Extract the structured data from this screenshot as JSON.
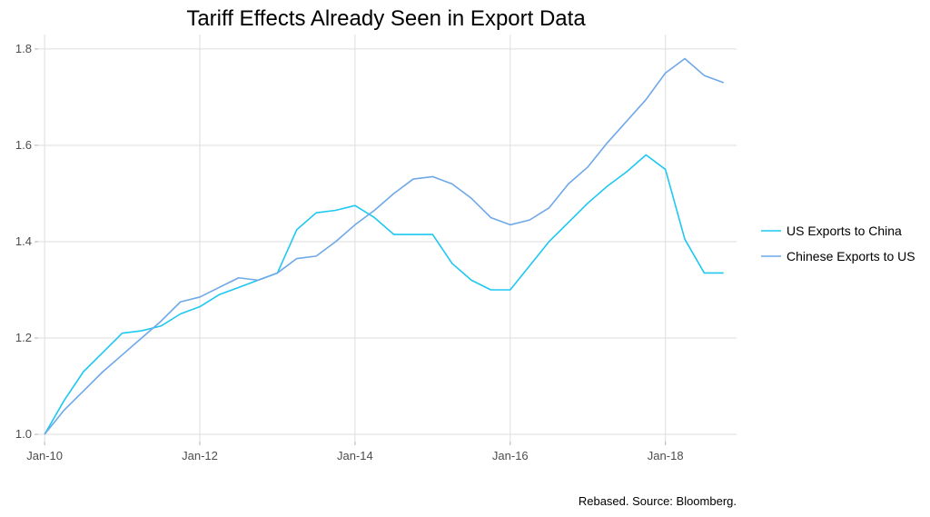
{
  "chart_data": {
    "type": "line",
    "title": "Tariff Effects Already Seen in Export Data",
    "caption": "Rebased. Source: Bloomberg.",
    "xlabel": "",
    "ylabel": "",
    "x_ticks": [
      "Jan-10",
      "Jan-12",
      "Jan-14",
      "Jan-16",
      "Jan-18"
    ],
    "y_ticks": [
      "1.0",
      "1.2",
      "1.4",
      "1.6",
      "1.8"
    ],
    "ylim": [
      0.985,
      1.83
    ],
    "xlim": [
      "2009-12",
      "2018-12"
    ],
    "grid": true,
    "legend_position": "right",
    "series": [
      {
        "name": "US Exports to China",
        "color": "#1ec8f0",
        "x": [
          "2010-01",
          "2010-04",
          "2010-07",
          "2010-10",
          "2011-01",
          "2011-04",
          "2011-07",
          "2011-10",
          "2012-01",
          "2012-04",
          "2012-07",
          "2012-10",
          "2013-01",
          "2013-04",
          "2013-07",
          "2013-10",
          "2014-01",
          "2014-04",
          "2014-07",
          "2014-10",
          "2015-01",
          "2015-04",
          "2015-07",
          "2015-10",
          "2016-01",
          "2016-04",
          "2016-07",
          "2016-10",
          "2017-01",
          "2017-04",
          "2017-07",
          "2017-10",
          "2018-01",
          "2018-04",
          "2018-07",
          "2018-10"
        ],
        "values": [
          1.0,
          1.07,
          1.13,
          1.17,
          1.21,
          1.215,
          1.225,
          1.25,
          1.265,
          1.29,
          1.305,
          1.32,
          1.335,
          1.425,
          1.46,
          1.465,
          1.475,
          1.45,
          1.415,
          1.415,
          1.415,
          1.355,
          1.32,
          1.3,
          1.3,
          1.35,
          1.4,
          1.44,
          1.48,
          1.515,
          1.545,
          1.58,
          1.55,
          1.405,
          1.335,
          1.335
        ]
      },
      {
        "name": "Chinese Exports to US",
        "color": "#6fa8e8",
        "x": [
          "2010-01",
          "2010-04",
          "2010-07",
          "2010-10",
          "2011-01",
          "2011-04",
          "2011-07",
          "2011-10",
          "2012-01",
          "2012-04",
          "2012-07",
          "2012-10",
          "2013-01",
          "2013-04",
          "2013-07",
          "2013-10",
          "2014-01",
          "2014-04",
          "2014-07",
          "2014-10",
          "2015-01",
          "2015-04",
          "2015-07",
          "2015-10",
          "2016-01",
          "2016-04",
          "2016-07",
          "2016-10",
          "2017-01",
          "2017-04",
          "2017-07",
          "2017-10",
          "2018-01",
          "2018-04",
          "2018-07",
          "2018-10"
        ],
        "values": [
          1.0,
          1.05,
          1.09,
          1.13,
          1.165,
          1.2,
          1.235,
          1.275,
          1.285,
          1.305,
          1.325,
          1.32,
          1.335,
          1.365,
          1.37,
          1.4,
          1.435,
          1.465,
          1.5,
          1.53,
          1.535,
          1.52,
          1.49,
          1.45,
          1.435,
          1.445,
          1.47,
          1.52,
          1.555,
          1.605,
          1.65,
          1.695,
          1.75,
          1.78,
          1.745,
          1.73
        ]
      }
    ]
  }
}
